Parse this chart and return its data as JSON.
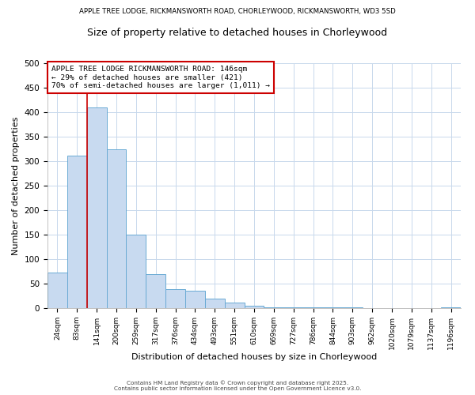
{
  "title_top": "APPLE TREE LODGE, RICKMANSWORTH ROAD, CHORLEYWOOD, RICKMANSWORTH, WD3 5SD",
  "title_main": "Size of property relative to detached houses in Chorleywood",
  "xlabel": "Distribution of detached houses by size in Chorleywood",
  "ylabel": "Number of detached properties",
  "bar_labels": [
    "24sqm",
    "83sqm",
    "141sqm",
    "200sqm",
    "259sqm",
    "317sqm",
    "376sqm",
    "434sqm",
    "493sqm",
    "551sqm",
    "610sqm",
    "669sqm",
    "727sqm",
    "786sqm",
    "844sqm",
    "903sqm",
    "962sqm",
    "1020sqm",
    "1079sqm",
    "1137sqm",
    "1196sqm"
  ],
  "bar_values": [
    72,
    312,
    410,
    325,
    150,
    70,
    38,
    35,
    20,
    12,
    5,
    2,
    2,
    1,
    1,
    1,
    0,
    0,
    0,
    0,
    2
  ],
  "bar_color": "#c8daf0",
  "bar_edge_color": "#6aaad4",
  "vline_color": "#cc0000",
  "annotation_line1": "APPLE TREE LODGE RICKMANSWORTH ROAD: 146sqm",
  "annotation_line2": "← 29% of detached houses are smaller (421)",
  "annotation_line3": "70% of semi-detached houses are larger (1,011) →",
  "annotation_box_color": "#cc0000",
  "ylim": [
    0,
    500
  ],
  "yticks": [
    0,
    50,
    100,
    150,
    200,
    250,
    300,
    350,
    400,
    450,
    500
  ],
  "footer1": "Contains HM Land Registry data © Crown copyright and database right 2025.",
  "footer2": "Contains public sector information licensed under the Open Government Licence v3.0.",
  "background_color": "#ffffff",
  "grid_color": "#c8d8ec"
}
